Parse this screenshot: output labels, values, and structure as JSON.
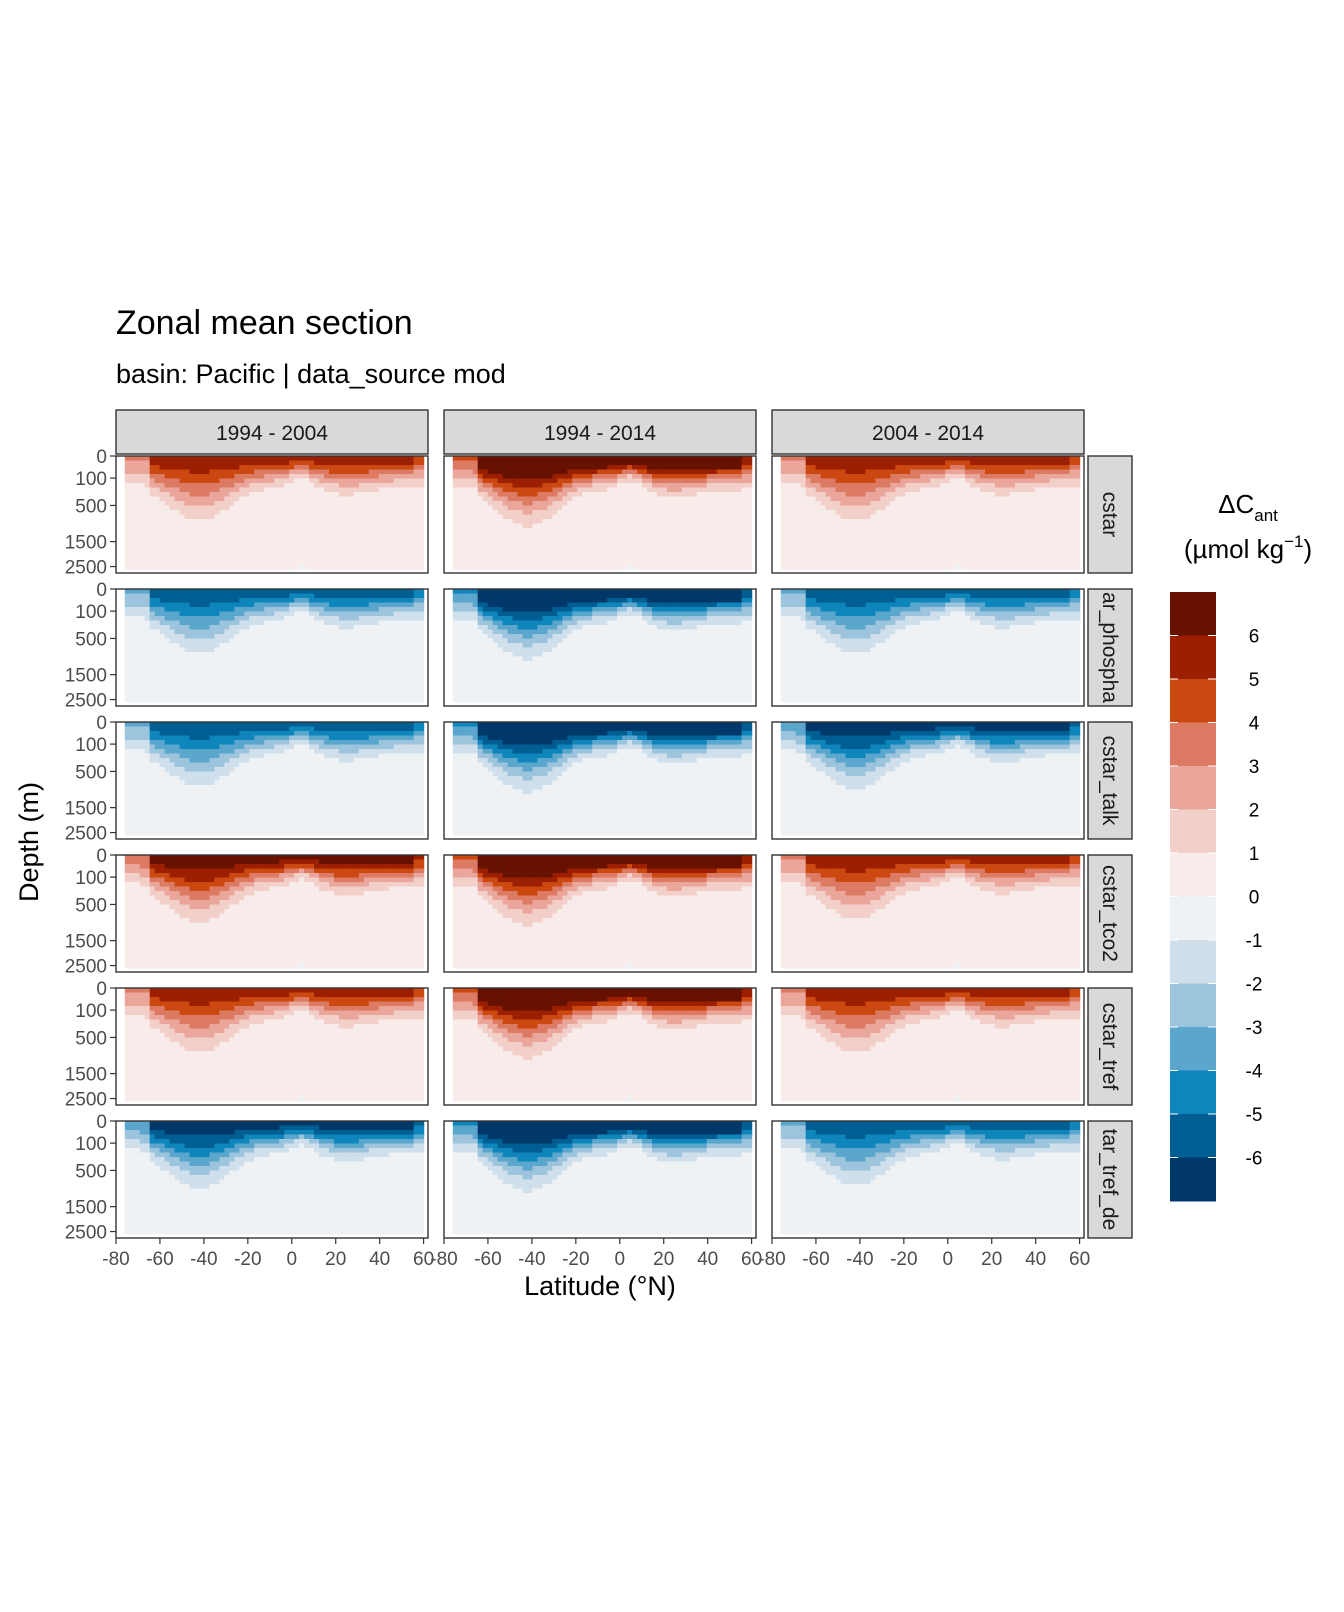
{
  "title": "Zonal mean section",
  "subtitle": "basin: Pacific | data_source mod",
  "legend": {
    "title_main": "ΔC",
    "title_sub": "ant",
    "title_units": "(µmol kg",
    "title_exp": "−1",
    "title_close": ")",
    "breaks": [
      "6",
      "5",
      "4",
      "3",
      "2",
      "1",
      "0",
      "-1",
      "-2",
      "-3",
      "-4",
      "-5",
      "-6"
    ],
    "colors": [
      "#671200",
      "#9b1f00",
      "#cc4811",
      "#dd7a63",
      "#eba69b",
      "#f3cfc9",
      "#f8eceb",
      "#eef2f5",
      "#cfe0ec",
      "#9dc4dd",
      "#5aa6cc",
      "#0e86bc",
      "#015e93",
      "#00386a"
    ]
  },
  "chart_data": {
    "type": "heatmap",
    "title": "Zonal mean section",
    "subtitle": "basin: Pacific | data_source mod",
    "xlabel": "Latitude (°N)",
    "ylabel": "Depth (m)",
    "x_ticks": [
      "-80",
      "-60",
      "-40",
      "-20",
      "0",
      "20",
      "40",
      "60"
    ],
    "x_range": [
      -80,
      62
    ],
    "y_ticks": [
      "0",
      "100",
      "500",
      "1500",
      "2500"
    ],
    "y_reversed": true,
    "columns": [
      "1994 - 2004",
      "1994 - 2014",
      "2004 - 2014"
    ],
    "rows": [
      "cstar",
      "ar_phospha",
      "cstar_talk",
      "cstar_tco2",
      "cstar_tref",
      "tar_tref_de"
    ],
    "legend_placement": "right",
    "color_scale_title": "ΔCant (µmol kg−1)",
    "color_breaks": [
      6,
      5,
      4,
      3,
      2,
      1,
      0,
      -1,
      -2,
      -3,
      -4,
      -5,
      -6
    ],
    "surface_level_approx": [
      [
        4,
        6,
        4
      ],
      [
        -4,
        -6,
        -4
      ],
      [
        -4,
        -6,
        -5
      ],
      [
        5,
        6,
        4
      ],
      [
        4,
        6,
        4
      ],
      [
        -5,
        -6,
        -4
      ]
    ]
  }
}
